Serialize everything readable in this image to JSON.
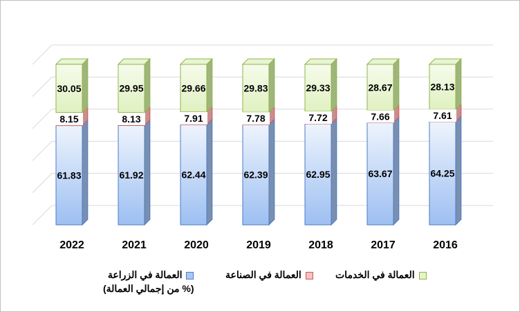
{
  "chart_data": {
    "type": "bar",
    "stacked": true,
    "categories": [
      "2022",
      "2021",
      "2020",
      "2019",
      "2018",
      "2017",
      "2016"
    ],
    "series": [
      {
        "name": "العمالة في الزراعة",
        "color": "#a9c8f5",
        "values": [
          61.83,
          61.92,
          62.44,
          62.39,
          62.95,
          63.67,
          64.25
        ]
      },
      {
        "name": "العمالة في الصناعة",
        "color": "#f4c3c3",
        "values": [
          8.15,
          8.13,
          7.91,
          7.78,
          7.72,
          7.66,
          7.61
        ]
      },
      {
        "name": "العمالة في الخدمات",
        "color": "#e5f4c8",
        "values": [
          30.05,
          29.95,
          29.66,
          29.83,
          29.33,
          28.67,
          28.13
        ]
      }
    ],
    "ylim": [
      0,
      100
    ],
    "ylabel": "",
    "xlabel": "",
    "grid": true,
    "three_d": true,
    "legend_position": "bottom",
    "unit_note": "(% من إجمالي العمالة)"
  }
}
